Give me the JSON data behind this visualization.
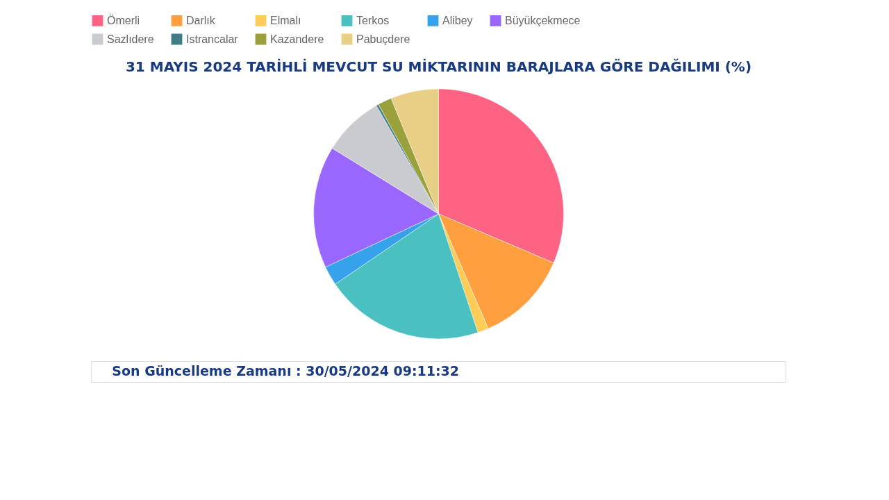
{
  "chart_data": {
    "type": "pie",
    "title": "31 MAYIS 2024 TARİHLİ MEVCUT SU MİKTARININ BARAJLARA GÖRE DAĞILIMI (%)",
    "categories": [
      "Ömerli",
      "Darlık",
      "Elmalı",
      "Terkos",
      "Alibey",
      "Büyükçekmece",
      "Sazlıdere",
      "Istrancalar",
      "Kazandere",
      "Pabuçdere"
    ],
    "values": [
      31.4,
      12.1,
      1.4,
      20.6,
      2.5,
      15.8,
      7.9,
      0.3,
      1.8,
      6.2
    ],
    "colors": [
      "#ff6384",
      "#ff9f40",
      "#ffcd56",
      "#4bc0c0",
      "#36a2eb",
      "#9966ff",
      "#c9cbcf",
      "#3e7c86",
      "#99a03c",
      "#e8cf85"
    ],
    "legend": "top",
    "annotations": [
      "Son Güncelleme Zamanı : 30/05/2024 09:11:32"
    ]
  }
}
